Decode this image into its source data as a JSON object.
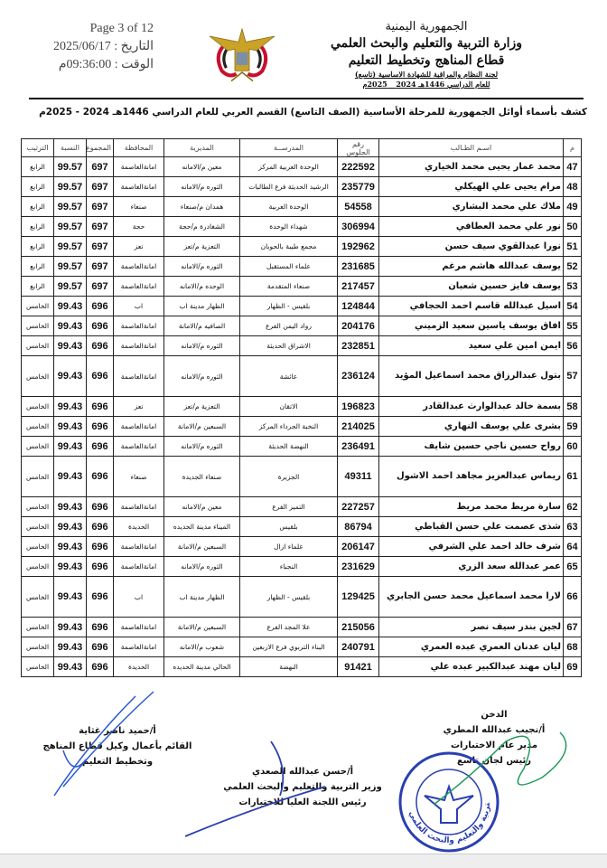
{
  "header": {
    "right_lines": [
      "الجمهورية اليمنية",
      "وزارة التربية والتعليم والبحث العلمي",
      "قطاع المناهج وتخطيط التعليم",
      "لجنة النظام والمراقبة للشهادة الاساسية (تاسع)",
      "للعام الدراسي 1446هـ 2024 _ 2025م"
    ],
    "page": "Page 3 of 12",
    "date": "التاريخ : 2025/06/17",
    "time": "الوقت : 09:36:00م",
    "emblem": "yemen-eagle-emblem"
  },
  "title": "كشف بأسماء أوائل الجمهورية  للمرحلة الأساسية (الصف التاسع) القسم العربي للعام الدراسي 1446هـ 2024 - 2025م",
  "table": {
    "columns": [
      "م",
      "اسـم الطـالب",
      "رقم الجلوس",
      "المدرســة",
      "المديرية",
      "المحافظة",
      "المجموع",
      "النسبة",
      "الترتيب"
    ],
    "rows": [
      [
        "47",
        "محمد عمار يحيى محمد الخياري",
        "222592",
        "الوحدة العربية  المركز",
        "معين م/الامانه",
        "امانةالعاصمة",
        "697",
        "99.57",
        "الرابع"
      ],
      [
        "48",
        "مرام يحيى علي الهيكلي",
        "235779",
        "الرشيد الحديثة فرع الطالبات",
        "الثوره م/الامانه",
        "امانةالعاصمة",
        "697",
        "99.57",
        "الرابع"
      ],
      [
        "49",
        "ملاك علي محمد البشاري",
        "54558",
        "الوحدة العربية",
        "همدان م/صنعاء",
        "صنعاء",
        "697",
        "99.57",
        "الرابع"
      ],
      [
        "50",
        "نور علي محمد العطافي",
        "306994",
        "شهداء الوحدة",
        "الشغادرة م/حجة",
        "حجة",
        "697",
        "99.57",
        "الرابع"
      ],
      [
        "51",
        "نورا عبدالقوي سيف حسن",
        "192962",
        "مجمع طيبة بالحوبان",
        "التعزية م/تعز",
        "تعز",
        "697",
        "99.57",
        "الرابع"
      ],
      [
        "52",
        "يوسف عبدالله هاشم مرغم",
        "231685",
        "علماء المستقبل",
        "الثوره م/الامانه",
        "امانةالعاصمة",
        "697",
        "99.57",
        "الرابع"
      ],
      [
        "53",
        "يوسف فايز حسين شعبان",
        "217457",
        "صنعاء المتقدمة",
        "الوحده م/الامانه",
        "امانةالعاصمة",
        "697",
        "99.57",
        "الرابع"
      ],
      [
        "54",
        "اسيل عبدالله قاسم احمد الحجافي",
        "124844",
        "بلقيس - الظهار",
        "الظهار مدينة اب",
        "اب",
        "696",
        "99.43",
        "الخامس"
      ],
      [
        "55",
        "افاق يوسف ياسين سعيد الزميني",
        "204176",
        "رواد اليمن الفرع",
        "الصافيه م/الامانة",
        "امانةالعاصمة",
        "696",
        "99.43",
        "الخامس"
      ],
      [
        "56",
        "ايمن امين علي سعيد",
        "232851",
        "الاشراق الحديثة",
        "الثوره م/الامانه",
        "امانةالعاصمة",
        "696",
        "99.43",
        "الخامس"
      ],
      [
        "57",
        "بتول عبدالرزاق محمد اسماعيل المؤيد",
        "236124",
        "عائشة",
        "الثوره م/الامانه",
        "امانةالعاصمة",
        "696",
        "99.43",
        "الخامس"
      ],
      [
        "58",
        "بسمة خالد عبدالوارث عبدالقادر",
        "196823",
        "الاتقان",
        "التعزية م/تعز",
        "تعز",
        "696",
        "99.43",
        "الخامس"
      ],
      [
        "59",
        "بشرى علي يوسف النهاري",
        "214025",
        "النخبة الجرداء  المركز",
        "السبعين م/الامانة",
        "امانةالعاصمة",
        "696",
        "99.43",
        "الخامس"
      ],
      [
        "60",
        "رواح حسين ناجي حسين شايف",
        "236491",
        "النهضة الحديثة",
        "الثوره م/الامانه",
        "امانةالعاصمة",
        "696",
        "99.43",
        "الخامس"
      ],
      [
        "61",
        "ريماس عبدالعزيز مجاهد احمد الاشول",
        "49311",
        "الجزيرة",
        "صنعاء الجديدة",
        "صنعاء",
        "696",
        "99.43",
        "الخامس"
      ],
      [
        "62",
        "سارة مريط محمد مريط",
        "227257",
        "التميز الفرع",
        "معين م/الامانه",
        "امانةالعاصمة",
        "696",
        "99.43",
        "الخامس"
      ],
      [
        "63",
        "شذى عصمت علي حسن القباطي",
        "86794",
        "بلقيس",
        "الميناء مدينة الحديده",
        "الحديدة",
        "696",
        "99.43",
        "الخامس"
      ],
      [
        "64",
        "شرف خالد احمد علي الشرفي",
        "206147",
        "علماء ازال",
        "السبعين م/الامانة",
        "امانةالعاصمة",
        "696",
        "99.43",
        "الخامس"
      ],
      [
        "65",
        "عمر عبدالله سعد الزري",
        "231629",
        "النجباء",
        "الثوره م/الامانه",
        "امانةالعاصمة",
        "696",
        "99.43",
        "الخامس"
      ],
      [
        "66",
        "لارا محمد اسماعيل محمد حسن الجابري",
        "129425",
        "بلقيس - الظهار",
        "الظهار مدينة اب",
        "اب",
        "696",
        "99.43",
        "الخامس"
      ],
      [
        "67",
        "لجين بندر سيف نصر",
        "215056",
        "علا المجد  الفرع",
        "السبعين م/الامانة",
        "امانةالعاصمة",
        "696",
        "99.43",
        "الخامس"
      ],
      [
        "68",
        "ليان عدنان العمري عبده العمري",
        "240791",
        "البناء التربوي فرع الاربعين",
        "شعوب م/الامانه",
        "امانةالعاصمة",
        "696",
        "99.43",
        "الخامس"
      ],
      [
        "69",
        "ليان مهند عبدالكبير عبده علي",
        "91421",
        "النهضة",
        "الحالي مدينة الحديده",
        "الحديدة",
        "696",
        "99.43",
        "الخامس"
      ]
    ],
    "tall_rows": [
      "57",
      "61",
      "66"
    ]
  },
  "signatures": {
    "right": [
      "الدخن",
      "أ/نجيب عبدالله المطري",
      "مدير عام الاختبارات",
      "رئيس لجان تاسع"
    ],
    "left": [
      "أ/حميد ناصر غثاية",
      "القائم بأعمال وكيل قطاع المناهج",
      "وتخطيط التعليم"
    ],
    "center": [
      "أ/حسن عبدالله الصعدي",
      "وزير التربية والتعليم والبحث العلمي",
      "رئيس اللجنة العليا للاختبارات"
    ],
    "stamp": "ministry-seal",
    "stamp_text": "وزارة التربية والتعليم والبحث العلمي"
  },
  "colors": {
    "ink": "#111111",
    "stamp_blue": "#2a3fb0",
    "signature_green": "#1f9a5a",
    "flag_red": "#c8102e",
    "emblem_gold": "#c9a227"
  }
}
